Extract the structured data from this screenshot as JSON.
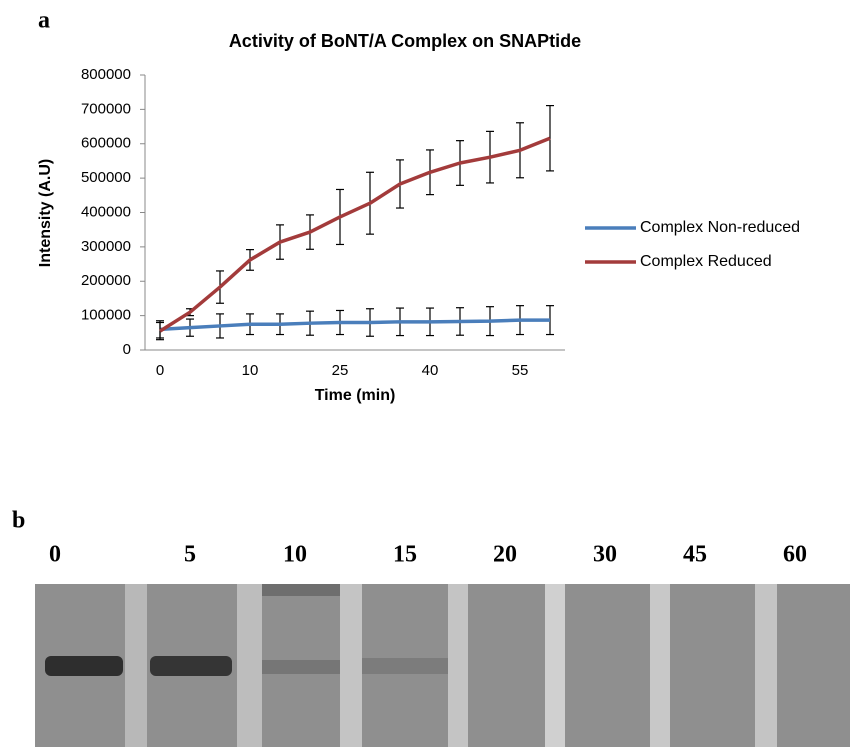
{
  "panel_labels": [
    "a",
    "b"
  ],
  "chart_data": {
    "type": "line",
    "title": "Activity of BoNT/A Complex on SNAPtide",
    "x_label": "Time (min)",
    "y_label": "Intensity (A.U)",
    "categories": [
      "0",
      null,
      null,
      "10",
      null,
      null,
      "25",
      null,
      null,
      "40",
      null,
      null,
      "55",
      null
    ],
    "series": [
      {
        "name": "Complex Non-reduced",
        "color": "#4a7ebb",
        "values": [
          60000,
          65000,
          70000,
          75000,
          75000,
          78000,
          80000,
          80000,
          82000,
          82000,
          83000,
          84000,
          87000,
          87000
        ],
        "errors": [
          25000,
          25000,
          35000,
          30000,
          30000,
          35000,
          35000,
          40000,
          40000,
          40000,
          40000,
          42000,
          42000,
          42000
        ]
      },
      {
        "name": "Complex Reduced",
        "color": "#a33b3b",
        "values": [
          55000,
          110000,
          183000,
          262000,
          314000,
          343000,
          387000,
          427000,
          483000,
          517000,
          544000,
          561000,
          581000,
          616000
        ],
        "errors": [
          25000,
          10000,
          47000,
          30000,
          50000,
          50000,
          80000,
          90000,
          70000,
          65000,
          65000,
          75000,
          80000,
          95000
        ]
      }
    ],
    "ylim": [
      0,
      800000
    ],
    "yticks": [
      0,
      100000,
      200000,
      300000,
      400000,
      500000,
      600000,
      700000,
      800000
    ],
    "legend": "right"
  },
  "gel_lanes": [
    "0",
    "5",
    "10",
    "15",
    "20",
    "30",
    "45",
    "60"
  ]
}
